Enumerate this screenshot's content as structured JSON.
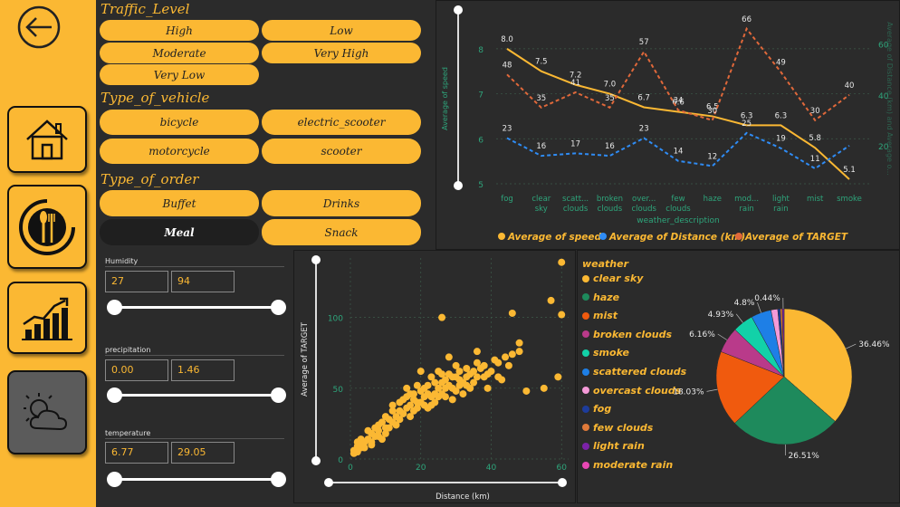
{
  "filters": {
    "traffic": {
      "title": "Traffic_Level",
      "items": [
        "High",
        "Low",
        "Moderate",
        "Very High",
        "Very Low"
      ]
    },
    "vehicle": {
      "title": "Type_of_vehicle",
      "items": [
        "bicycle",
        "electric_scooter",
        "motorcycle",
        "scooter"
      ]
    },
    "order": {
      "title": "Type_of_order",
      "items": [
        "Buffet",
        "Drinks",
        "Meal",
        "Snack"
      ],
      "selected": "Meal"
    }
  },
  "sliders": [
    {
      "label": "Humidity",
      "min": "27",
      "max": "94"
    },
    {
      "label": "precipitation",
      "min": "0.00",
      "max": "1.46"
    },
    {
      "label": "temperature",
      "min": "6.77",
      "max": "29.05"
    }
  ],
  "colors": {
    "accent": "#fbb833",
    "distance": "#2f8cf5",
    "target": "#e0683a",
    "bg": "#2b2b2b"
  },
  "icons": [
    "back-arrow-icon",
    "home-icon",
    "food-icon",
    "chart-icon",
    "weather-icon"
  ],
  "chart_data": [
    {
      "type": "line",
      "categories": [
        "fog",
        "clear sky",
        "scattered clouds",
        "broken clouds",
        "overcast clouds",
        "few clouds",
        "haze",
        "moderate rain",
        "light rain",
        "mist",
        "smoke"
      ],
      "category_labels": [
        [
          "fog"
        ],
        [
          "clear",
          "sky"
        ],
        [
          "scatt...",
          "clouds"
        ],
        [
          "broken",
          "clouds"
        ],
        [
          "over...",
          "clouds"
        ],
        [
          "few",
          "clouds"
        ],
        [
          "haze"
        ],
        [
          "mod...",
          "rain"
        ],
        [
          "light",
          "rain"
        ],
        [
          "mist"
        ],
        [
          "smoke"
        ]
      ],
      "xlabel": "weather_description",
      "ylabel": "Average of speed",
      "y2label": "Average of Distance (km) and Average o...",
      "ylim": [
        5,
        8.5
      ],
      "y2lim": [
        5,
        67
      ],
      "yticks": [
        "5",
        "6",
        "7",
        "8"
      ],
      "y2ticks": [
        "20",
        "40",
        "60"
      ],
      "series": [
        {
          "name": "Average of speed",
          "axis": "left",
          "values": [
            8.0,
            7.5,
            7.2,
            7.0,
            6.7,
            6.6,
            6.5,
            6.3,
            6.3,
            5.8,
            5.1
          ],
          "labels": [
            "8.0",
            "7.5",
            "7.2",
            "7.0",
            "6.7",
            "6.6",
            "6.5",
            "6.3",
            "6.3",
            "5.8",
            "5.1"
          ]
        },
        {
          "name": "Average of Distance (km)",
          "axis": "right",
          "values": [
            23,
            16,
            17,
            16,
            23,
            14,
            12,
            25,
            19,
            11,
            20
          ],
          "labels": [
            "23",
            "16",
            "17",
            "16",
            "23",
            "14",
            "12",
            "25",
            "19",
            "11",
            ""
          ]
        },
        {
          "name": "Average of TARGET",
          "axis": "right",
          "values": [
            48,
            35,
            41,
            35,
            57,
            34,
            30,
            66,
            49,
            30,
            40
          ],
          "labels": [
            "48",
            "35",
            "41",
            "35",
            "57",
            "34",
            "30",
            "66",
            "49",
            "30",
            "40"
          ]
        }
      ],
      "legend": "bottom"
    },
    {
      "type": "scatter",
      "xlabel": "Distance (km)",
      "ylabel": "Average of TARGET",
      "xlim": [
        0,
        62
      ],
      "ylim": [
        0,
        142
      ],
      "xticks": [
        "0",
        "20",
        "40",
        "60"
      ],
      "yticks": [
        "0",
        "50",
        "100"
      ],
      "points": [
        [
          60,
          139
        ],
        [
          57,
          112
        ],
        [
          60,
          102
        ],
        [
          46,
          103
        ],
        [
          26,
          100
        ],
        [
          48,
          82
        ],
        [
          59,
          58
        ],
        [
          43,
          56
        ],
        [
          50,
          48
        ],
        [
          55,
          50
        ],
        [
          39,
          50
        ],
        [
          33,
          52
        ],
        [
          42,
          68
        ],
        [
          36,
          76
        ],
        [
          30,
          66
        ],
        [
          28,
          72
        ],
        [
          25,
          50
        ],
        [
          23,
          58
        ],
        [
          20,
          62
        ],
        [
          18,
          46
        ],
        [
          16,
          50
        ],
        [
          14,
          40
        ],
        [
          12,
          34
        ],
        [
          10,
          30
        ],
        [
          8,
          24
        ],
        [
          6,
          18
        ],
        [
          4,
          12
        ],
        [
          2,
          9
        ],
        [
          1,
          6
        ],
        [
          3,
          14
        ],
        [
          5,
          20
        ],
        [
          7,
          16
        ],
        [
          9,
          26
        ],
        [
          11,
          22
        ],
        [
          13,
          30
        ],
        [
          15,
          32
        ],
        [
          17,
          38
        ],
        [
          19,
          40
        ],
        [
          21,
          44
        ],
        [
          22,
          36
        ],
        [
          24,
          46
        ],
        [
          26,
          54
        ],
        [
          27,
          44
        ],
        [
          29,
          50
        ],
        [
          31,
          56
        ],
        [
          32,
          46
        ],
        [
          34,
          60
        ],
        [
          35,
          54
        ],
        [
          37,
          64
        ],
        [
          38,
          58
        ],
        [
          40,
          62
        ],
        [
          12,
          38
        ],
        [
          14,
          28
        ],
        [
          16,
          36
        ],
        [
          18,
          34
        ],
        [
          20,
          48
        ],
        [
          22,
          52
        ],
        [
          24,
          40
        ],
        [
          28,
          60
        ],
        [
          30,
          48
        ],
        [
          33,
          64
        ],
        [
          36,
          58
        ],
        [
          4,
          8
        ],
        [
          6,
          12
        ],
        [
          8,
          20
        ],
        [
          10,
          18
        ],
        [
          11,
          28
        ],
        [
          13,
          24
        ],
        [
          15,
          42
        ],
        [
          17,
          30
        ],
        [
          19,
          52
        ],
        [
          21,
          38
        ],
        [
          23,
          44
        ],
        [
          25,
          62
        ],
        [
          27,
          56
        ],
        [
          29,
          42
        ],
        [
          31,
          62
        ],
        [
          34,
          50
        ],
        [
          2,
          12
        ],
        [
          3,
          8
        ],
        [
          5,
          14
        ],
        [
          7,
          22
        ],
        [
          9,
          14
        ],
        [
          26,
          46
        ],
        [
          28,
          52
        ],
        [
          30,
          58
        ],
        [
          32,
          54
        ],
        [
          35,
          62
        ],
        [
          38,
          66
        ],
        [
          41,
          70
        ],
        [
          18,
          42
        ],
        [
          20,
          40
        ],
        [
          22,
          46
        ],
        [
          16,
          44
        ],
        [
          12,
          26
        ],
        [
          10,
          22
        ],
        [
          8,
          16
        ],
        [
          6,
          10
        ],
        [
          1,
          4
        ],
        [
          2,
          5
        ],
        [
          3,
          10
        ],
        [
          24,
          54
        ],
        [
          26,
          60
        ],
        [
          14,
          34
        ],
        [
          17,
          46
        ],
        [
          19,
          36
        ],
        [
          21,
          50
        ],
        [
          23,
          38
        ],
        [
          25,
          44
        ],
        [
          27,
          50
        ],
        [
          29,
          58
        ],
        [
          31,
          52
        ],
        [
          33,
          58
        ],
        [
          36,
          68
        ],
        [
          39,
          60
        ],
        [
          45,
          66
        ],
        [
          44,
          72
        ],
        [
          46,
          74
        ],
        [
          48,
          76
        ],
        [
          42,
          58
        ]
      ]
    },
    {
      "type": "pie",
      "legend_title": "weather",
      "legend": "left",
      "slices": [
        {
          "name": "clear sky",
          "value": 36.46,
          "label": "36.46%",
          "color": "#fbb833"
        },
        {
          "name": "haze",
          "value": 26.51,
          "label": "26.51%",
          "color": "#1e8a5c"
        },
        {
          "name": "mist",
          "value": 18.03,
          "label": "18.03%",
          "color": "#f05a0e"
        },
        {
          "name": "broken clouds",
          "value": 6.16,
          "label": "6.16%",
          "color": "#b93a8a"
        },
        {
          "name": "smoke",
          "value": 4.93,
          "label": "4.93%",
          "color": "#12d1a8"
        },
        {
          "name": "scattered clouds",
          "value": 4.8,
          "label": "4.8%",
          "color": "#1e7fe6"
        },
        {
          "name": "overcast clouds",
          "value": 1.6,
          "label": "",
          "color": "#f49ad8"
        },
        {
          "name": "fog",
          "value": 0.6,
          "label": "",
          "color": "#1d3c9b"
        },
        {
          "name": "few clouds",
          "value": 0.47,
          "label": "",
          "color": "#e07a3a"
        },
        {
          "name": "light rain",
          "value": 0.44,
          "label": "0.44%",
          "color": "#7b22a8"
        },
        {
          "name": "moderate rain",
          "value": 0.0,
          "label": "",
          "color": "#e847b4"
        }
      ]
    }
  ]
}
